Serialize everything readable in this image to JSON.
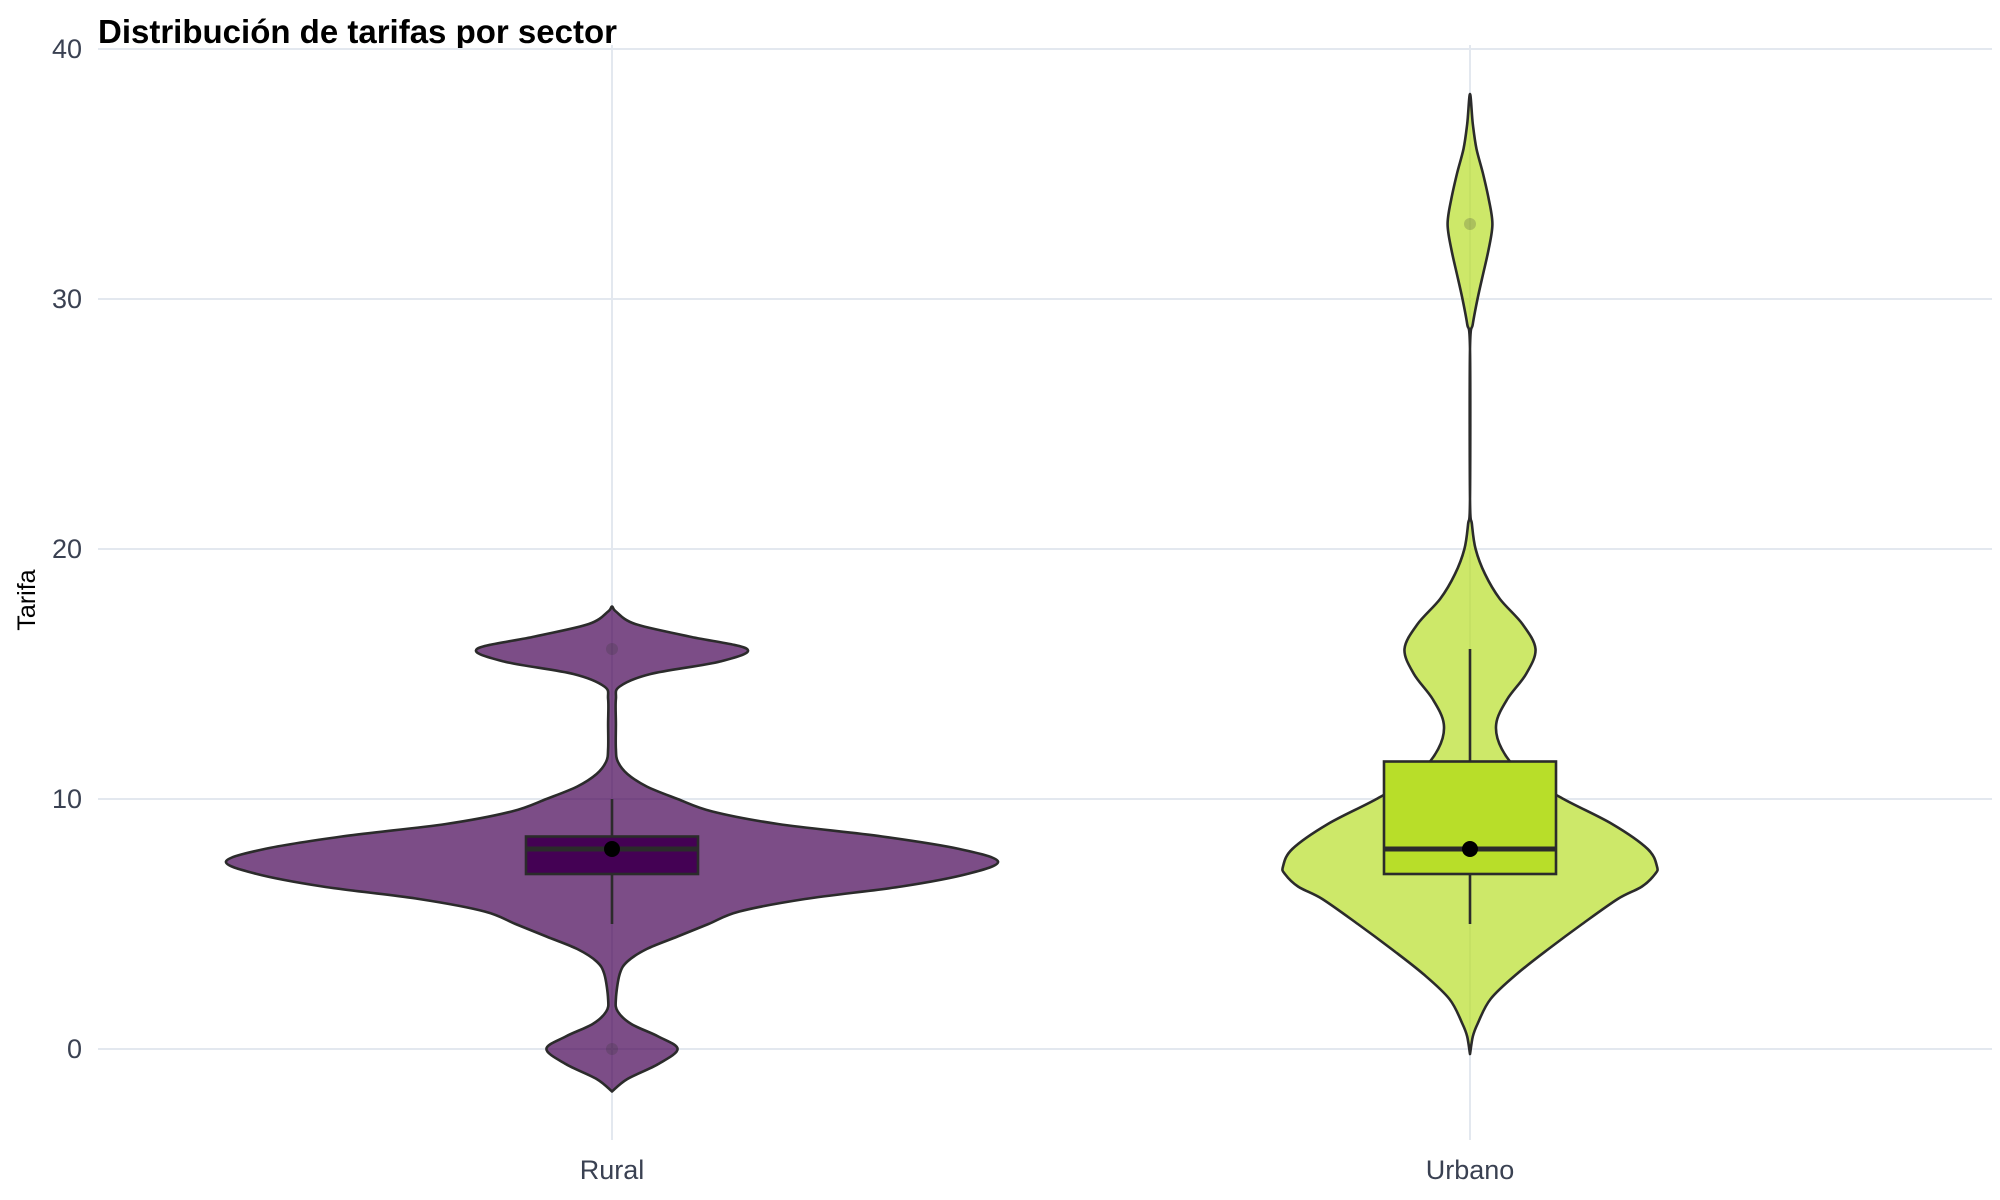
{
  "chart_data": {
    "type": "violin",
    "title": "Distribución de tarifas por sector",
    "xlabel": "",
    "ylabel": "Tarifa",
    "ylim": [
      -4,
      40
    ],
    "yticks": [
      0,
      10,
      20,
      30,
      40
    ],
    "grid": true,
    "legend": "none",
    "categories": [
      "Rural",
      "Urbano"
    ],
    "series": [
      {
        "category": "Rural",
        "color": "#440154",
        "violin_alpha": 0.7,
        "density": [
          [
            -1.7,
            0.0
          ],
          [
            -1.2,
            0.04
          ],
          [
            -0.6,
            0.12
          ],
          [
            0.0,
            0.17
          ],
          [
            0.5,
            0.12
          ],
          [
            1.0,
            0.05
          ],
          [
            1.5,
            0.015
          ],
          [
            2.0,
            0.01
          ],
          [
            3.0,
            0.02
          ],
          [
            3.5,
            0.04
          ],
          [
            4.0,
            0.09
          ],
          [
            4.5,
            0.17
          ],
          [
            5.0,
            0.25
          ],
          [
            5.5,
            0.33
          ],
          [
            6.0,
            0.5
          ],
          [
            6.5,
            0.75
          ],
          [
            7.0,
            0.92
          ],
          [
            7.5,
            1.0
          ],
          [
            8.0,
            0.9
          ],
          [
            8.5,
            0.7
          ],
          [
            9.0,
            0.43
          ],
          [
            9.5,
            0.26
          ],
          [
            10.0,
            0.17
          ],
          [
            10.5,
            0.09
          ],
          [
            11.0,
            0.04
          ],
          [
            11.5,
            0.015
          ],
          [
            12.0,
            0.01
          ],
          [
            13.0,
            0.01
          ],
          [
            14.0,
            0.01
          ],
          [
            14.5,
            0.02
          ],
          [
            15.0,
            0.1
          ],
          [
            15.5,
            0.28
          ],
          [
            16.0,
            0.35
          ],
          [
            16.5,
            0.2
          ],
          [
            17.0,
            0.06
          ],
          [
            17.5,
            0.01
          ],
          [
            17.7,
            0.0
          ]
        ],
        "box": {
          "q1": 7,
          "median": 8,
          "q3": 8.5,
          "whisker_low": 5,
          "whisker_high": 10
        },
        "mean": 8,
        "outliers": [
          0,
          16
        ]
      },
      {
        "category": "Urbano",
        "color": "#b8de29",
        "violin_alpha": 0.7,
        "density": [
          [
            -0.2,
            0.0
          ],
          [
            0.5,
            0.015
          ],
          [
            1.0,
            0.04
          ],
          [
            2.0,
            0.11
          ],
          [
            3.0,
            0.25
          ],
          [
            4.0,
            0.42
          ],
          [
            5.0,
            0.6
          ],
          [
            6.0,
            0.79
          ],
          [
            6.5,
            0.92
          ],
          [
            7.0,
            0.99
          ],
          [
            7.3,
            1.0
          ],
          [
            8.0,
            0.95
          ],
          [
            9.0,
            0.76
          ],
          [
            10.0,
            0.5
          ],
          [
            11.0,
            0.28
          ],
          [
            12.0,
            0.17
          ],
          [
            13.0,
            0.14
          ],
          [
            14.0,
            0.2
          ],
          [
            15.0,
            0.3
          ],
          [
            16.0,
            0.35
          ],
          [
            17.0,
            0.28
          ],
          [
            18.0,
            0.16
          ],
          [
            19.0,
            0.08
          ],
          [
            20.0,
            0.03
          ],
          [
            21.0,
            0.01
          ],
          [
            22.0,
            0.0
          ],
          [
            28.0,
            0.0
          ],
          [
            29.0,
            0.015
          ],
          [
            30.0,
            0.04
          ],
          [
            31.0,
            0.07
          ],
          [
            32.0,
            0.1
          ],
          [
            33.0,
            0.12
          ],
          [
            34.0,
            0.1
          ],
          [
            35.0,
            0.07
          ],
          [
            36.0,
            0.035
          ],
          [
            37.0,
            0.015
          ],
          [
            38.2,
            0.0
          ]
        ],
        "box": {
          "q1": 7,
          "median": 8,
          "q3": 11.5,
          "whisker_low": 5,
          "whisker_high": 16
        },
        "mean": 8,
        "outliers": [
          33
        ]
      }
    ]
  }
}
